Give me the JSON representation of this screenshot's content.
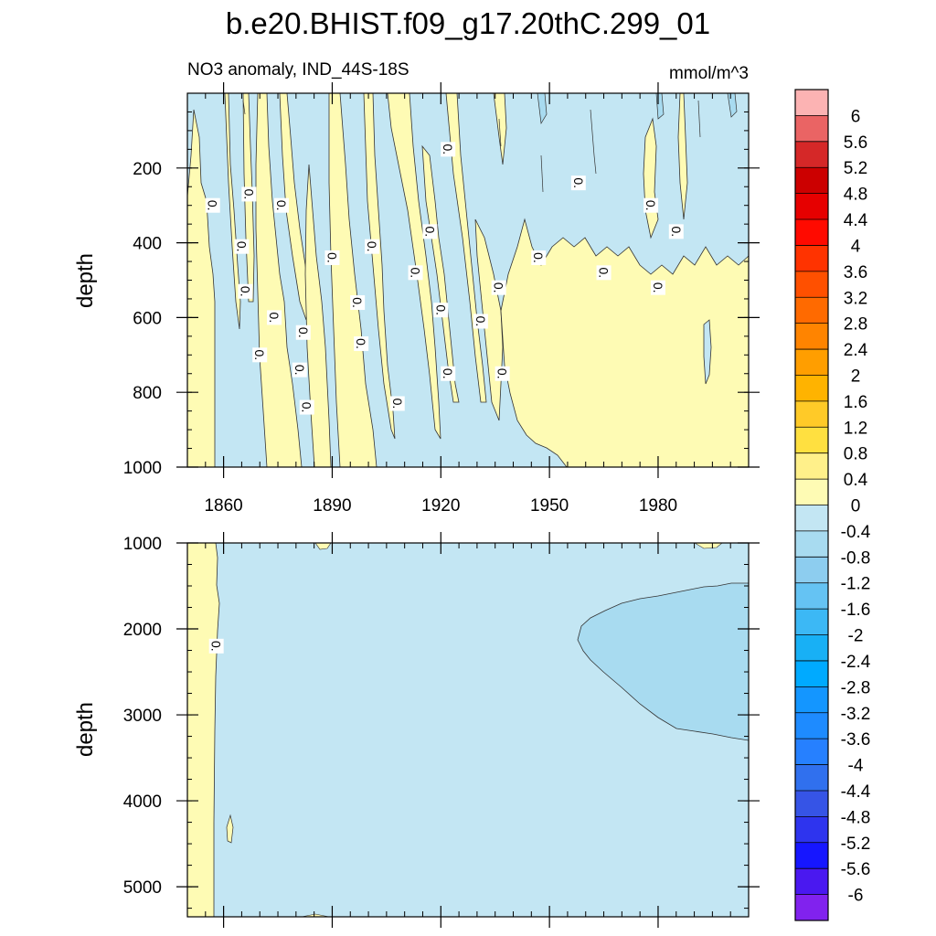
{
  "chart_data": {
    "type": "heatmap",
    "title": "b.e20.BHIST.f09_g17.20thC.299_01",
    "subtitle_left": "NO3 anomaly, IND_44S-18S",
    "subtitle_right": "mmol/m^3",
    "ylabel": "depth",
    "x_ticks": [
      "1860",
      "1890",
      "1920",
      "1950",
      "1980"
    ],
    "x_tick_values": [
      1860,
      1890,
      1920,
      1950,
      1980
    ],
    "xlim": [
      1850,
      2005
    ],
    "top_panel": {
      "ylim": [
        0,
        1000
      ],
      "y_ticks": [
        "200",
        "400",
        "600",
        "800",
        "1000"
      ],
      "y_tick_values": [
        200,
        400,
        600,
        800,
        1000
      ]
    },
    "bottom_panel": {
      "ylim": [
        1000,
        5350
      ],
      "y_ticks": [
        "1000",
        "2000",
        "3000",
        "4000",
        "5000"
      ],
      "y_tick_values": [
        1000,
        2000,
        3000,
        4000,
        5000
      ]
    },
    "contour_label": "0.",
    "top_contour_labels": [
      {
        "x": 1857,
        "y": 300
      },
      {
        "x": 1867,
        "y": 270
      },
      {
        "x": 1876,
        "y": 300
      },
      {
        "x": 1865,
        "y": 410
      },
      {
        "x": 1866,
        "y": 530
      },
      {
        "x": 1874,
        "y": 600
      },
      {
        "x": 1870,
        "y": 700
      },
      {
        "x": 1882,
        "y": 640
      },
      {
        "x": 1881,
        "y": 740
      },
      {
        "x": 1883,
        "y": 840
      },
      {
        "x": 1890,
        "y": 440
      },
      {
        "x": 1897,
        "y": 560
      },
      {
        "x": 1898,
        "y": 670
      },
      {
        "x": 1901,
        "y": 410
      },
      {
        "x": 1908,
        "y": 830
      },
      {
        "x": 1913,
        "y": 480
      },
      {
        "x": 1917,
        "y": 370
      },
      {
        "x": 1920,
        "y": 580
      },
      {
        "x": 1922,
        "y": 150
      },
      {
        "x": 1922,
        "y": 750
      },
      {
        "x": 1931,
        "y": 610
      },
      {
        "x": 1936,
        "y": 520
      },
      {
        "x": 1937,
        "y": 750
      },
      {
        "x": 1947,
        "y": 440
      },
      {
        "x": 1958,
        "y": 240
      },
      {
        "x": 1965,
        "y": 480
      },
      {
        "x": 1978,
        "y": 300
      },
      {
        "x": 1980,
        "y": 520
      },
      {
        "x": 1985,
        "y": 370
      }
    ],
    "bottom_contour_labels": [
      {
        "x": 1858,
        "y": 2200
      }
    ],
    "colorbar": {
      "labels": [
        "6",
        "5.6",
        "5.2",
        "4.8",
        "4.4",
        "4",
        "3.6",
        "3.2",
        "2.8",
        "2.4",
        "2",
        "1.6",
        "1.2",
        "0.8",
        "0.4",
        "0",
        "-0.4",
        "-0.8",
        "-1.2",
        "-1.6",
        "-2",
        "-2.4",
        "-2.8",
        "-3.2",
        "-3.6",
        "-4",
        "-4.4",
        "-4.8",
        "-5.2",
        "-5.6",
        "-6"
      ],
      "colors": [
        "#fcb3b3",
        "#ea6464",
        "#d52828",
        "#cc0000",
        "#e60000",
        "#ff0a00",
        "#ff3300",
        "#ff5000",
        "#ff6a00",
        "#ff8400",
        "#ff9e00",
        "#ffb300",
        "#ffca28",
        "#ffe040",
        "#fff08a",
        "#fefbb4",
        "#c3e6f3",
        "#a8dbf0",
        "#8dcdef",
        "#65c3f3",
        "#3cb8f5",
        "#18b0f5",
        "#00aaff",
        "#1496ff",
        "#1e8bff",
        "#2680ff",
        "#3070ee",
        "#3654e6",
        "#2e34ee",
        "#1616ff",
        "#4a18f0",
        "#8122ee"
      ]
    }
  }
}
